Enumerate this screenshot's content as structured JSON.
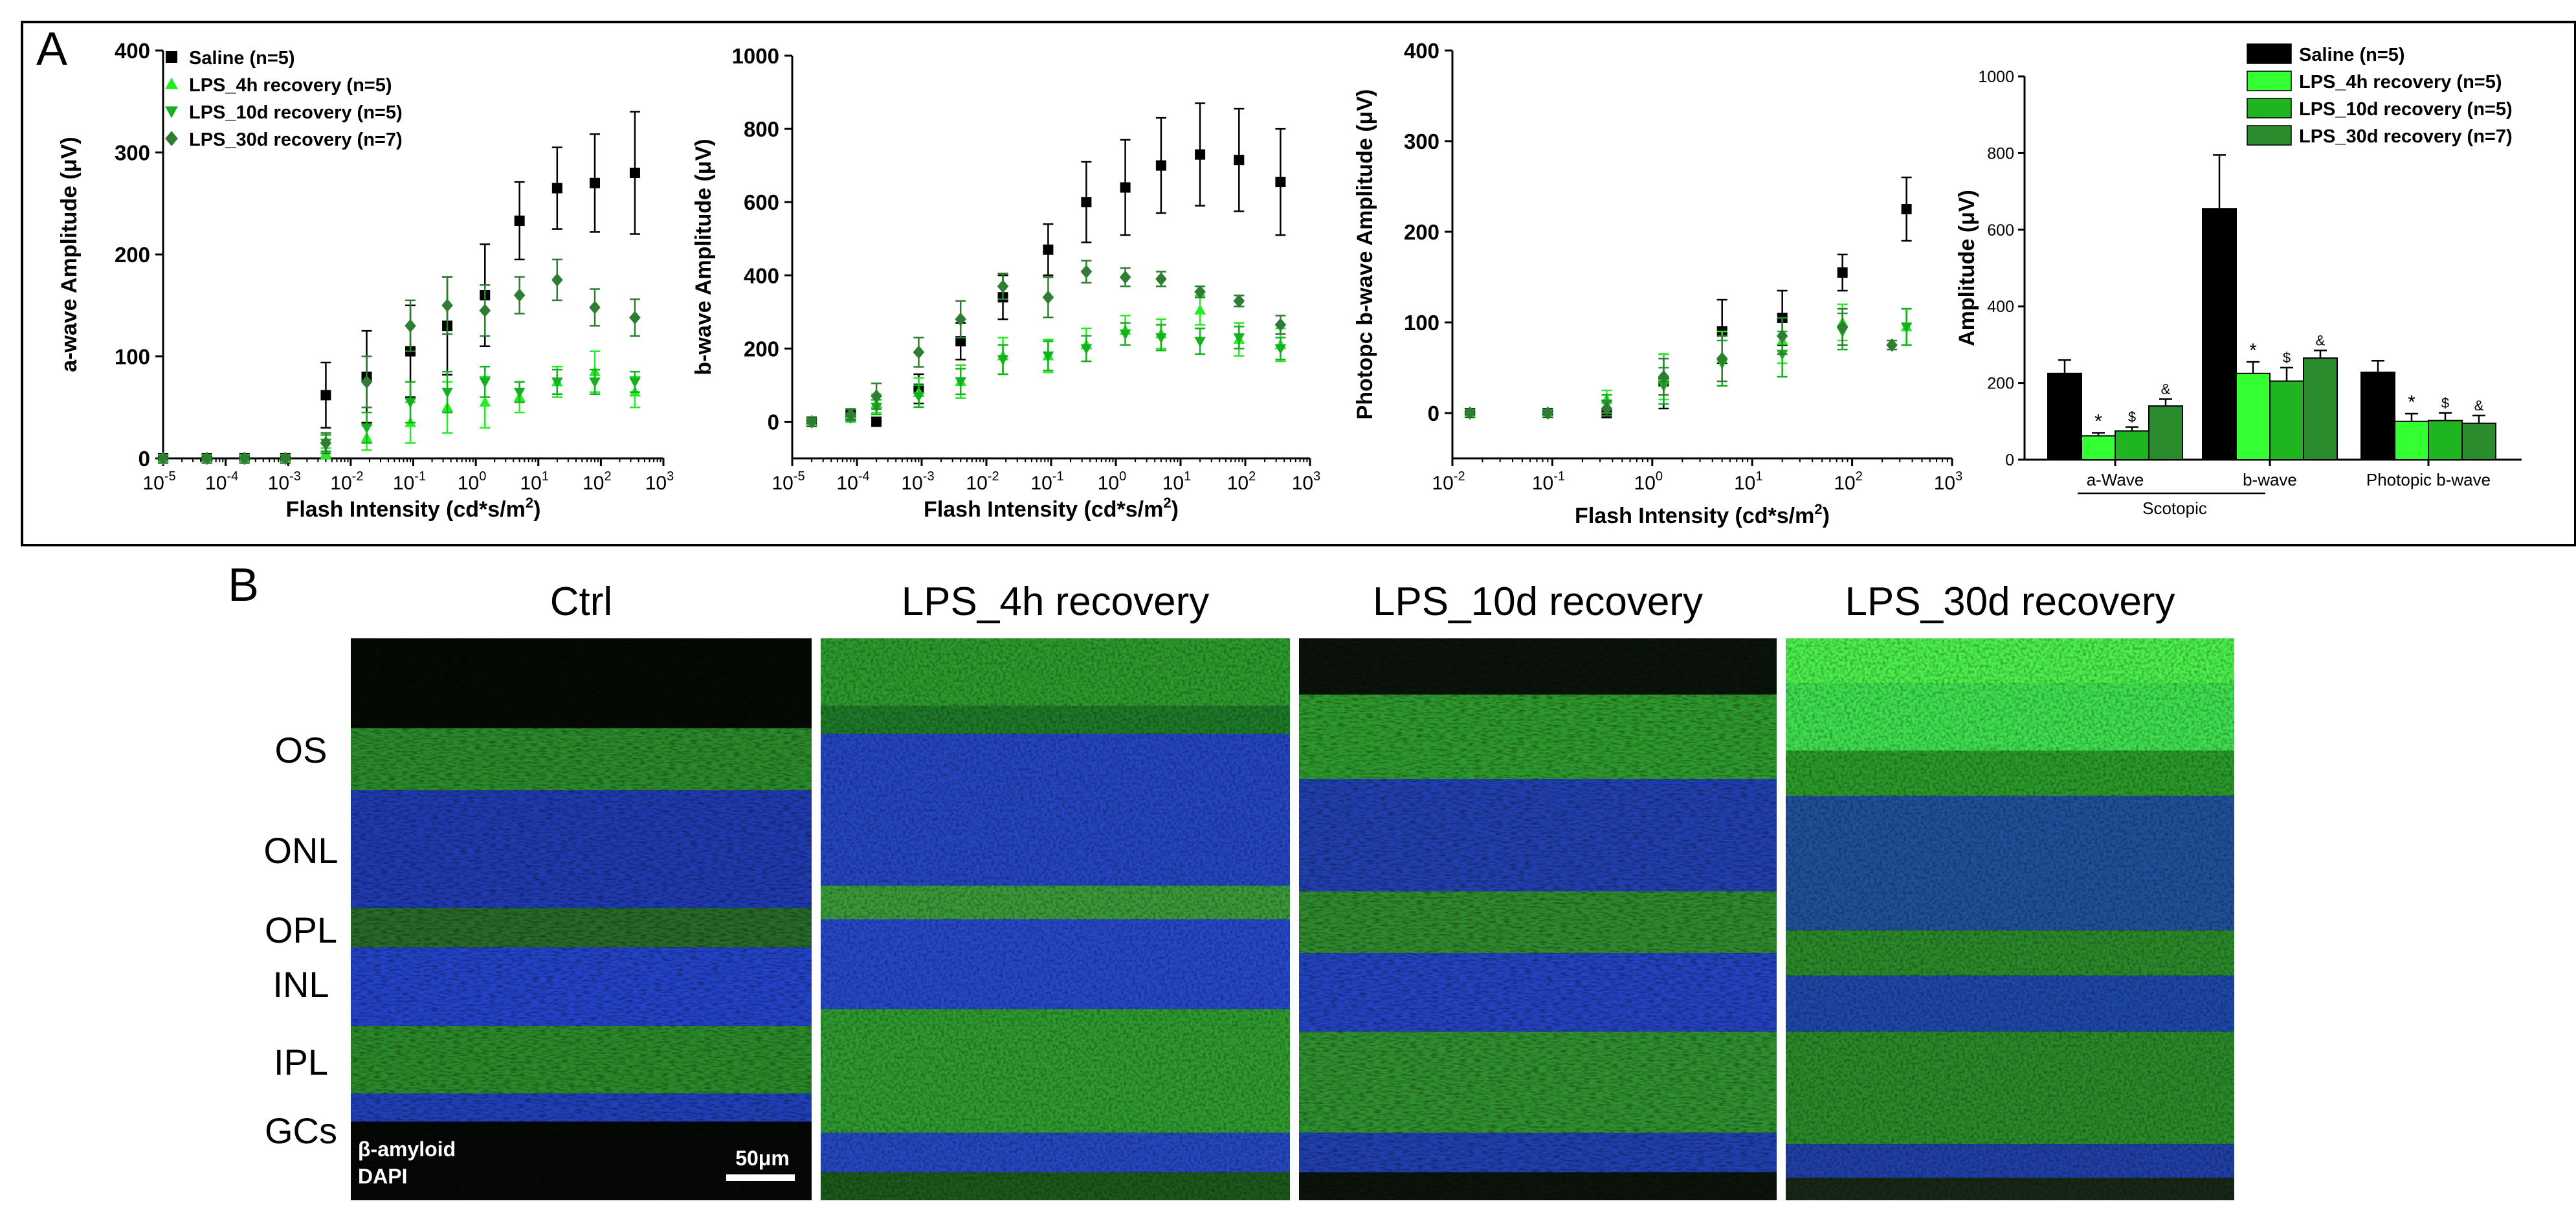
{
  "panel_a_label": "A",
  "panel_b_label": "B",
  "colors": {
    "saline": "#000000",
    "lps_4h": "#22ee22",
    "lps_10d": "#15b020",
    "lps_30d": "#2e7d32",
    "bar_4h": "#33ff33",
    "bar_10d": "#1fb521",
    "bar_30d": "#2b8c2e",
    "dapi": "#1a3ad8",
    "amyloid": "#36b836"
  },
  "chart_data": [
    {
      "type": "scatter",
      "id": "awave",
      "ylabel": "a-wave Amplitude (μV)",
      "xlabel": "Flash Intensity (cd*s/m",
      "xlabel_sup": "2",
      "xlabel_end": ")",
      "xscale": "log",
      "xlim_exp": [
        -5,
        3
      ],
      "ylim": [
        0,
        400
      ],
      "yticks": [
        0,
        100,
        200,
        300,
        400
      ],
      "legend": [
        "Saline (n=5)",
        "LPS_4h recovery (n=5)",
        "LPS_10d recovery (n=5)",
        "LPS_30d recovery (n=7)"
      ],
      "legend_position": "top-left",
      "series": [
        {
          "name": "Saline (n=5)",
          "marker": "square",
          "color": "#000000",
          "x": [
            1e-05,
            5e-05,
            0.0002,
            0.0009,
            0.004,
            0.018,
            0.09,
            0.35,
            1.4,
            5,
            20,
            80,
            350
          ],
          "y": [
            0,
            0,
            0,
            0,
            62,
            80,
            105,
            130,
            160,
            233,
            265,
            270,
            280
          ],
          "err": [
            0,
            0,
            0,
            0,
            32,
            45,
            45,
            48,
            50,
            38,
            40,
            48,
            60
          ]
        },
        {
          "name": "LPS_4h recovery (n=5)",
          "marker": "triangle-up",
          "color": "#22ee22",
          "x": [
            1e-05,
            5e-05,
            0.0002,
            0.0009,
            0.004,
            0.018,
            0.09,
            0.35,
            1.4,
            5,
            20,
            80,
            350
          ],
          "y": [
            0,
            0,
            0,
            0,
            5,
            20,
            35,
            50,
            55,
            60,
            75,
            85,
            65
          ],
          "err": [
            0,
            0,
            0,
            0,
            5,
            12,
            20,
            25,
            25,
            15,
            15,
            20,
            15
          ]
        },
        {
          "name": "LPS_10d recovery (n=5)",
          "marker": "triangle-down",
          "color": "#15b020",
          "x": [
            1e-05,
            5e-05,
            0.0002,
            0.0009,
            0.004,
            0.018,
            0.09,
            0.35,
            1.4,
            5,
            20,
            80,
            350
          ],
          "y": [
            0,
            0,
            0,
            0,
            15,
            30,
            55,
            65,
            75,
            65,
            75,
            75,
            75
          ],
          "err": [
            0,
            0,
            0,
            0,
            8,
            15,
            20,
            20,
            15,
            10,
            12,
            12,
            10
          ]
        },
        {
          "name": "LPS_30d recovery (n=7)",
          "marker": "diamond",
          "color": "#2e7d32",
          "x": [
            1e-05,
            5e-05,
            0.0002,
            0.0009,
            0.004,
            0.018,
            0.09,
            0.35,
            1.4,
            5,
            20,
            80,
            350
          ],
          "y": [
            0,
            0,
            0,
            0,
            15,
            75,
            130,
            150,
            145,
            160,
            175,
            148,
            138
          ],
          "err": [
            0,
            0,
            0,
            0,
            10,
            25,
            25,
            28,
            25,
            18,
            20,
            18,
            18
          ]
        }
      ]
    },
    {
      "type": "scatter",
      "id": "bwave",
      "ylabel": "b-wave Amplitude (μV)",
      "xlabel": "Flash Intensity (cd*s/m",
      "xlabel_sup": "2",
      "xlabel_end": ")",
      "xscale": "log",
      "xlim_exp": [
        -5,
        3
      ],
      "ylim": [
        -100,
        1000
      ],
      "yticks": [
        0,
        200,
        400,
        600,
        800,
        1000
      ],
      "series": [
        {
          "name": "Saline (n=5)",
          "marker": "square",
          "color": "#000000",
          "x": [
            2e-05,
            8e-05,
            0.0002,
            0.0009,
            0.004,
            0.018,
            0.09,
            0.35,
            1.4,
            5,
            20,
            80,
            350
          ],
          "y": [
            0,
            20,
            0,
            90,
            220,
            340,
            470,
            600,
            640,
            700,
            730,
            715,
            655
          ],
          "err": [
            0,
            15,
            0,
            40,
            50,
            60,
            70,
            110,
            130,
            130,
            140,
            140,
            145
          ]
        },
        {
          "name": "LPS_4h recovery (n=5)",
          "marker": "triangle-up",
          "color": "#22ee22",
          "x": [
            2e-05,
            8e-05,
            0.0002,
            0.0009,
            0.004,
            0.018,
            0.09,
            0.35,
            1.4,
            5,
            20,
            80,
            350
          ],
          "y": [
            0,
            20,
            50,
            80,
            110,
            180,
            180,
            210,
            250,
            240,
            305,
            225,
            210
          ],
          "err": [
            0,
            15,
            25,
            40,
            45,
            50,
            45,
            45,
            40,
            40,
            40,
            45,
            45
          ]
        },
        {
          "name": "LPS_10d recovery (n=5)",
          "marker": "triangle-down",
          "color": "#15b020",
          "x": [
            2e-05,
            8e-05,
            0.0002,
            0.0009,
            0.004,
            0.018,
            0.09,
            0.35,
            1.4,
            5,
            20,
            80,
            350
          ],
          "y": [
            0,
            10,
            40,
            70,
            110,
            170,
            180,
            200,
            240,
            230,
            220,
            230,
            200
          ],
          "err": [
            0,
            10,
            20,
            30,
            35,
            40,
            40,
            35,
            30,
            35,
            35,
            30,
            30
          ]
        },
        {
          "name": "LPS_30d recovery (n=7)",
          "marker": "diamond",
          "color": "#2e7d32",
          "x": [
            2e-05,
            8e-05,
            0.0002,
            0.0009,
            0.004,
            0.018,
            0.09,
            0.35,
            1.4,
            5,
            20,
            80,
            350
          ],
          "y": [
            0,
            20,
            70,
            190,
            280,
            370,
            340,
            410,
            395,
            390,
            355,
            330,
            265
          ],
          "err": [
            0,
            15,
            35,
            40,
            50,
            35,
            55,
            30,
            25,
            20,
            15,
            15,
            25
          ]
        }
      ]
    },
    {
      "type": "scatter",
      "id": "photopic",
      "ylabel": "Photopc b-wave Amplitude (μV)",
      "xlabel": "Flash Intensity (cd*s/m",
      "xlabel_sup": "2",
      "xlabel_end": ")",
      "xscale": "log",
      "xlim_exp": [
        -2,
        3
      ],
      "ylim": [
        -50,
        400
      ],
      "yticks": [
        0,
        100,
        200,
        300,
        400
      ],
      "series": [
        {
          "name": "Saline (n=5)",
          "marker": "square",
          "color": "#000000",
          "x": [
            0.015,
            0.09,
            0.35,
            1.3,
            5,
            20,
            80,
            350
          ],
          "y": [
            0,
            0,
            0,
            35,
            90,
            105,
            155,
            225
          ],
          "err": [
            0,
            0,
            5,
            30,
            35,
            30,
            20,
            35
          ]
        },
        {
          "name": "LPS_4h recovery (n=5)",
          "marker": "triangle-up",
          "color": "#22ee22",
          "x": [
            0.015,
            0.09,
            0.35,
            1.3,
            5,
            20,
            80,
            350
          ],
          "y": [
            0,
            0,
            15,
            40,
            60,
            80,
            100,
            95
          ],
          "err": [
            0,
            0,
            10,
            25,
            30,
            25,
            20,
            20
          ]
        },
        {
          "name": "LPS_10d recovery (n=5)",
          "marker": "triangle-down",
          "color": "#15b020",
          "x": [
            0.015,
            0.09,
            0.35,
            1.3,
            5,
            20,
            80,
            350
          ],
          "y": [
            0,
            0,
            10,
            30,
            55,
            65,
            90,
            95
          ],
          "err": [
            0,
            0,
            10,
            20,
            25,
            25,
            20,
            20
          ]
        },
        {
          "name": "LPS_30d recovery (n=7)",
          "marker": "diamond",
          "color": "#2e7d32",
          "x": [
            0.015,
            0.09,
            0.35,
            1.3,
            5,
            20,
            80,
            250
          ],
          "y": [
            0,
            0,
            5,
            40,
            60,
            85,
            95,
            75
          ],
          "err": [
            0,
            0,
            8,
            20,
            25,
            20,
            20,
            5
          ]
        }
      ]
    },
    {
      "type": "bar",
      "id": "summary",
      "ylabel": "Amplitude (μV)",
      "ylim": [
        0,
        1000
      ],
      "yticks": [
        0,
        200,
        400,
        600,
        800,
        1000
      ],
      "categories": [
        "a-Wave",
        "b-wave",
        "Photopic b-wave"
      ],
      "group_label": "Scotopic",
      "legend": [
        "Saline (n=5)",
        "LPS_4h recovery (n=5)",
        "LPS_10d recovery (n=5)",
        "LPS_30d recovery (n=7)"
      ],
      "legend_position": "top-right",
      "series": [
        {
          "name": "Saline (n=5)",
          "values": [
            225,
            655,
            228
          ],
          "err": [
            35,
            140,
            30
          ]
        },
        {
          "name": "LPS_4h recovery (n=5)",
          "values": [
            62,
            225,
            100
          ],
          "err": [
            8,
            30,
            20
          ]
        },
        {
          "name": "LPS_10d recovery (n=5)",
          "values": [
            75,
            205,
            102
          ],
          "err": [
            10,
            35,
            20
          ]
        },
        {
          "name": "LPS_30d recovery (n=7)",
          "values": [
            140,
            265,
            95
          ],
          "err": [
            18,
            20,
            20
          ]
        }
      ],
      "significance": [
        [
          "",
          "*",
          "$",
          "&"
        ],
        [
          "",
          "*",
          "$",
          "&"
        ],
        [
          "",
          "*",
          "$",
          "&"
        ]
      ]
    }
  ],
  "micrographs": {
    "titles": [
      "Ctrl",
      "LPS_4h recovery",
      "LPS_10d recovery",
      "LPS_30d recovery"
    ],
    "layers": [
      "OS",
      "ONL",
      "OPL",
      "INL",
      "IPL",
      "GCs"
    ],
    "stain_label_1": "β-amyloid",
    "stain_label_2": "DAPI",
    "scale_bar": "50μm"
  }
}
